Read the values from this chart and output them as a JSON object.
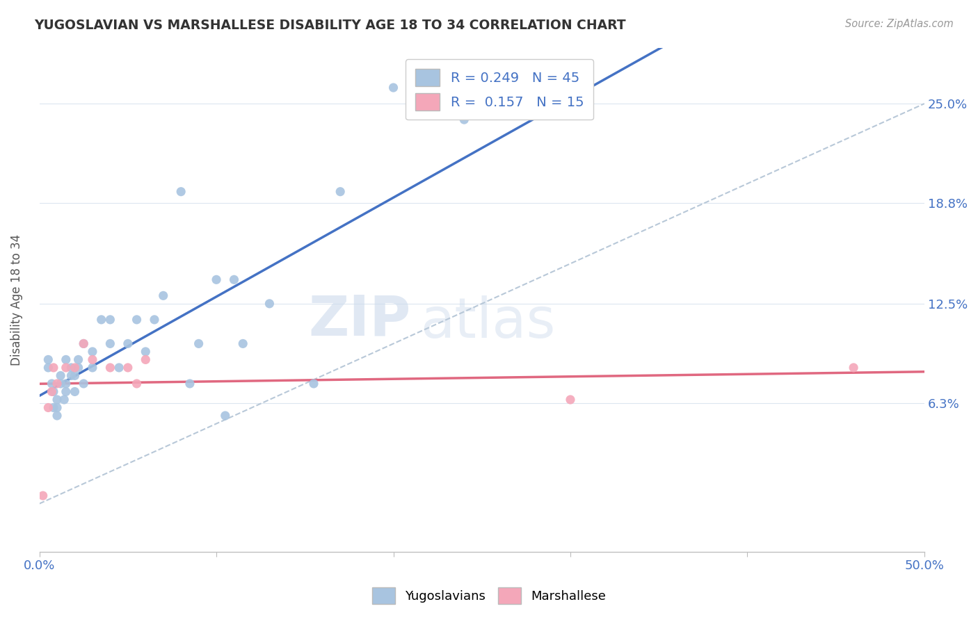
{
  "title": "YUGOSLAVIAN VS MARSHALLESE DISABILITY AGE 18 TO 34 CORRELATION CHART",
  "source": "Source: ZipAtlas.com",
  "ylabel": "Disability Age 18 to 34",
  "xlim": [
    0.0,
    0.5
  ],
  "ylim": [
    -0.03,
    0.285
  ],
  "ytick_positions": [
    0.063,
    0.125,
    0.188,
    0.25
  ],
  "ytick_labels": [
    "6.3%",
    "12.5%",
    "18.8%",
    "25.0%"
  ],
  "r_yugo": 0.249,
  "n_yugo": 45,
  "r_marsh": 0.157,
  "n_marsh": 15,
  "blue_color": "#a8c4e0",
  "pink_color": "#f4a7b9",
  "blue_line_color": "#4472c4",
  "pink_line_color": "#e06880",
  "trend_color": "#b8c8d8",
  "watermark_zip": "ZIP",
  "watermark_atlas": "atlas",
  "yugo_x": [
    0.005,
    0.005,
    0.007,
    0.008,
    0.008,
    0.01,
    0.01,
    0.01,
    0.012,
    0.012,
    0.014,
    0.015,
    0.015,
    0.015,
    0.018,
    0.018,
    0.02,
    0.02,
    0.022,
    0.022,
    0.025,
    0.025,
    0.03,
    0.03,
    0.035,
    0.04,
    0.04,
    0.045,
    0.05,
    0.055,
    0.06,
    0.065,
    0.07,
    0.08,
    0.085,
    0.09,
    0.1,
    0.105,
    0.11,
    0.115,
    0.13,
    0.155,
    0.17,
    0.2,
    0.24
  ],
  "yugo_y": [
    0.085,
    0.09,
    0.075,
    0.06,
    0.07,
    0.055,
    0.06,
    0.065,
    0.075,
    0.08,
    0.065,
    0.07,
    0.075,
    0.09,
    0.08,
    0.085,
    0.07,
    0.08,
    0.085,
    0.09,
    0.075,
    0.1,
    0.085,
    0.095,
    0.115,
    0.1,
    0.115,
    0.085,
    0.1,
    0.115,
    0.095,
    0.115,
    0.13,
    0.195,
    0.075,
    0.1,
    0.14,
    0.055,
    0.14,
    0.1,
    0.125,
    0.075,
    0.195,
    0.26,
    0.24
  ],
  "marsh_x": [
    0.002,
    0.005,
    0.007,
    0.008,
    0.01,
    0.015,
    0.02,
    0.025,
    0.03,
    0.04,
    0.05,
    0.055,
    0.06,
    0.3,
    0.46
  ],
  "marsh_y": [
    0.005,
    0.06,
    0.07,
    0.085,
    0.075,
    0.085,
    0.085,
    0.1,
    0.09,
    0.085,
    0.085,
    0.075,
    0.09,
    0.065,
    0.085
  ]
}
